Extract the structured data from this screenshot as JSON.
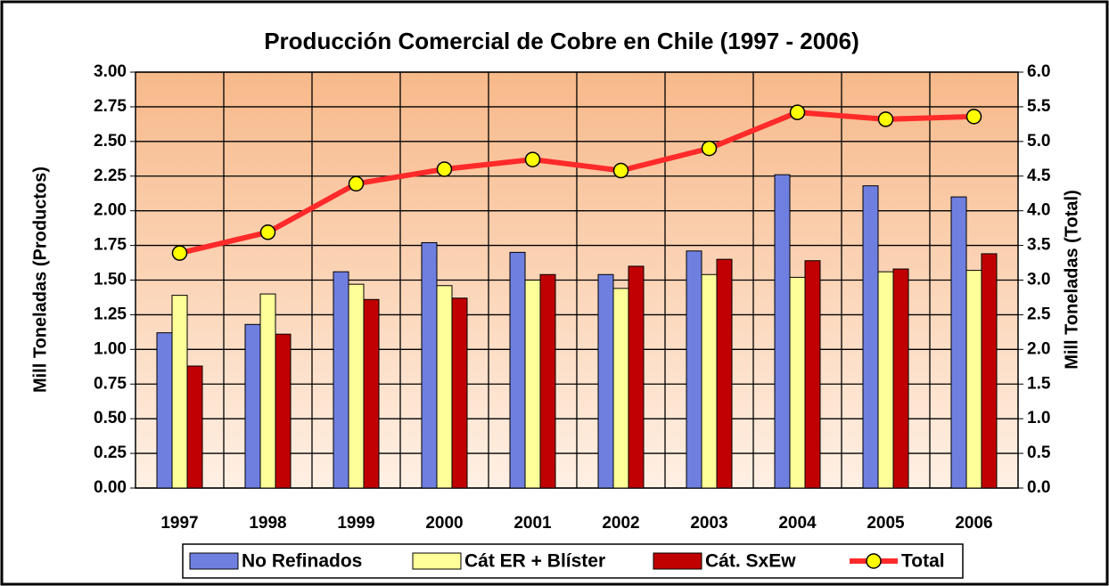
{
  "chart_data": {
    "type": "bar",
    "title": "Producción Comercial de Cobre en Chile (1997 - 2006)",
    "y_label": "Mill Toneladas (Productos)",
    "y2_label": "Mill Toneladas (Total)",
    "categories": [
      "1997",
      "1998",
      "1999",
      "2000",
      "2001",
      "2002",
      "2003",
      "2004",
      "2005",
      "2006"
    ],
    "series": [
      {
        "name": "No Refinados",
        "color": "#6f7fe0",
        "values": [
          1.12,
          1.18,
          1.56,
          1.77,
          1.7,
          1.54,
          1.71,
          2.26,
          2.18,
          2.1
        ]
      },
      {
        "name": "Cát ER + Blíster",
        "color": "#ffff99",
        "values": [
          1.39,
          1.4,
          1.47,
          1.46,
          1.5,
          1.44,
          1.54,
          1.52,
          1.56,
          1.57
        ]
      },
      {
        "name": "Cát. SxEw",
        "color": "#c00000",
        "values": [
          0.88,
          1.11,
          1.36,
          1.37,
          1.54,
          1.6,
          1.65,
          1.64,
          1.58,
          1.69
        ]
      },
      {
        "name": "Total",
        "type": "line",
        "axis": "y2",
        "color": "#ff2a2a",
        "marker_color": "#ffff00",
        "values": [
          3.39,
          3.69,
          4.39,
          4.6,
          4.74,
          4.58,
          4.9,
          5.42,
          5.32,
          5.36
        ]
      }
    ],
    "ylim": [
      0,
      3
    ],
    "yticks": [
      {
        "value": 0,
        "label": "0.00"
      },
      {
        "value": 0.25,
        "label": "0.25"
      },
      {
        "value": 0.5,
        "label": "0.50"
      },
      {
        "value": 0.75,
        "label": "0.75"
      },
      {
        "value": 1,
        "label": "1.00"
      },
      {
        "value": 1.25,
        "label": "1.25"
      },
      {
        "value": 1.5,
        "label": "1.50"
      },
      {
        "value": 1.75,
        "label": "1.75"
      },
      {
        "value": 2,
        "label": "2.00"
      },
      {
        "value": 2.25,
        "label": "2.25"
      },
      {
        "value": 2.5,
        "label": "2.50"
      },
      {
        "value": 2.75,
        "label": "2.75"
      },
      {
        "value": 3,
        "label": "3.00"
      }
    ],
    "y2lim": [
      0,
      6
    ],
    "y2ticks": [
      {
        "value": 0,
        "label": "0.0"
      },
      {
        "value": 0.5,
        "label": "0.5"
      },
      {
        "value": 1,
        "label": "1.0"
      },
      {
        "value": 1.5,
        "label": "1.5"
      },
      {
        "value": 2,
        "label": "2.0"
      },
      {
        "value": 2.5,
        "label": "2.5"
      },
      {
        "value": 3,
        "label": "3.0"
      },
      {
        "value": 3.5,
        "label": "3.5"
      },
      {
        "value": 4,
        "label": "4.0"
      },
      {
        "value": 4.5,
        "label": "4.5"
      },
      {
        "value": 5,
        "label": "5.0"
      },
      {
        "value": 5.5,
        "label": "5.5"
      },
      {
        "value": 6,
        "label": "6.0"
      }
    ],
    "grid": true,
    "legend": "bottom"
  }
}
